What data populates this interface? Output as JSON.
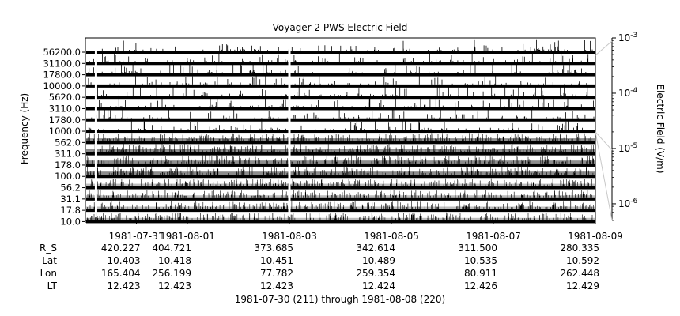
{
  "chart_data": {
    "type": "line",
    "title": "Voyager 2 PWS Electric Field",
    "ylabel": "Frequency (Hz)",
    "colorbar": {
      "label": "Electric Field (V/m)",
      "scale": "log",
      "range": [
        5e-07,
        0.001
      ],
      "ticks": [
        {
          "value": 0.001,
          "base": "10",
          "exp": "-3"
        },
        {
          "value": 0.0001,
          "base": "10",
          "exp": "-4"
        },
        {
          "value": 1e-05,
          "base": "10",
          "exp": "-5"
        },
        {
          "value": 1e-06,
          "base": "10",
          "exp": "-6"
        }
      ]
    },
    "xlim": [
      "1981-07-30",
      "1981-08-09"
    ],
    "x_tick_labels": [
      {
        "label": "1981-07-31",
        "date": "1981-07-31"
      },
      {
        "label": "1981-08-01",
        "date": "1981-08-01"
      },
      {
        "label": "1981-08-03",
        "date": "1981-08-03"
      },
      {
        "label": "1981-08-05",
        "date": "1981-08-05"
      },
      {
        "label": "1981-08-07",
        "date": "1981-08-07"
      },
      {
        "label": "1981-08-09",
        "date": "1981-08-09"
      }
    ],
    "x_minor_ticks": [
      "1981-07-30",
      "1981-08-02",
      "1981-08-04",
      "1981-08-06",
      "1981-08-08"
    ],
    "channels": [
      {
        "label": "56200.0",
        "freq": 56200,
        "level": 1.5e-06
      },
      {
        "label": "31100.0",
        "freq": 31100,
        "level": 1.5e-06
      },
      {
        "label": "17800.0",
        "freq": 17800,
        "level": 1.6e-06
      },
      {
        "label": "10000.0",
        "freq": 10000,
        "level": 1.7e-06
      },
      {
        "label": "5620.0",
        "freq": 5620,
        "level": 1.8e-06
      },
      {
        "label": "3110.0",
        "freq": 3110,
        "level": 2e-06
      },
      {
        "label": "1780.0",
        "freq": 1780,
        "level": 2.2e-06
      },
      {
        "label": "1000.0",
        "freq": 1000,
        "level": 3e-06
      },
      {
        "label": "562.0",
        "freq": 562,
        "level": 5e-06
      },
      {
        "label": "311.0",
        "freq": 311,
        "level": 8e-06
      },
      {
        "label": "178.0",
        "freq": 178,
        "level": 8e-06
      },
      {
        "label": "100.0",
        "freq": 100,
        "level": 1e-05
      },
      {
        "label": "56.2",
        "freq": 56.2,
        "level": 4e-06
      },
      {
        "label": "31.1",
        "freq": 31.1,
        "level": 3e-06
      },
      {
        "label": "17.8",
        "freq": 17.8,
        "level": 3e-06
      },
      {
        "label": "10.0",
        "freq": 10,
        "level": 3e-06
      }
    ],
    "data_gaps": [
      "1981-07-30T05:00",
      "1981-08-03T00:00"
    ],
    "ephemeris": {
      "rows": [
        "R_S",
        "Lat",
        "Lon",
        "LT"
      ],
      "columns": [
        {
          "date": "1981-07-31",
          "values": [
            "420.227",
            "10.403",
            "165.404",
            "12.423"
          ]
        },
        {
          "date": "1981-08-01",
          "values": [
            "404.721",
            "10.418",
            "256.199",
            "12.423"
          ]
        },
        {
          "date": "1981-08-03",
          "values": [
            "373.685",
            "10.451",
            "77.782",
            "12.423"
          ]
        },
        {
          "date": "1981-08-05",
          "values": [
            "342.614",
            "10.489",
            "259.354",
            "12.424"
          ]
        },
        {
          "date": "1981-08-07",
          "values": [
            "311.500",
            "10.535",
            "80.911",
            "12.426"
          ]
        },
        {
          "date": "1981-08-09",
          "values": [
            "280.335",
            "10.592",
            "262.448",
            "12.429"
          ]
        }
      ]
    },
    "footer": "1981-07-30 (211) through 1981-08-08 (220)"
  }
}
